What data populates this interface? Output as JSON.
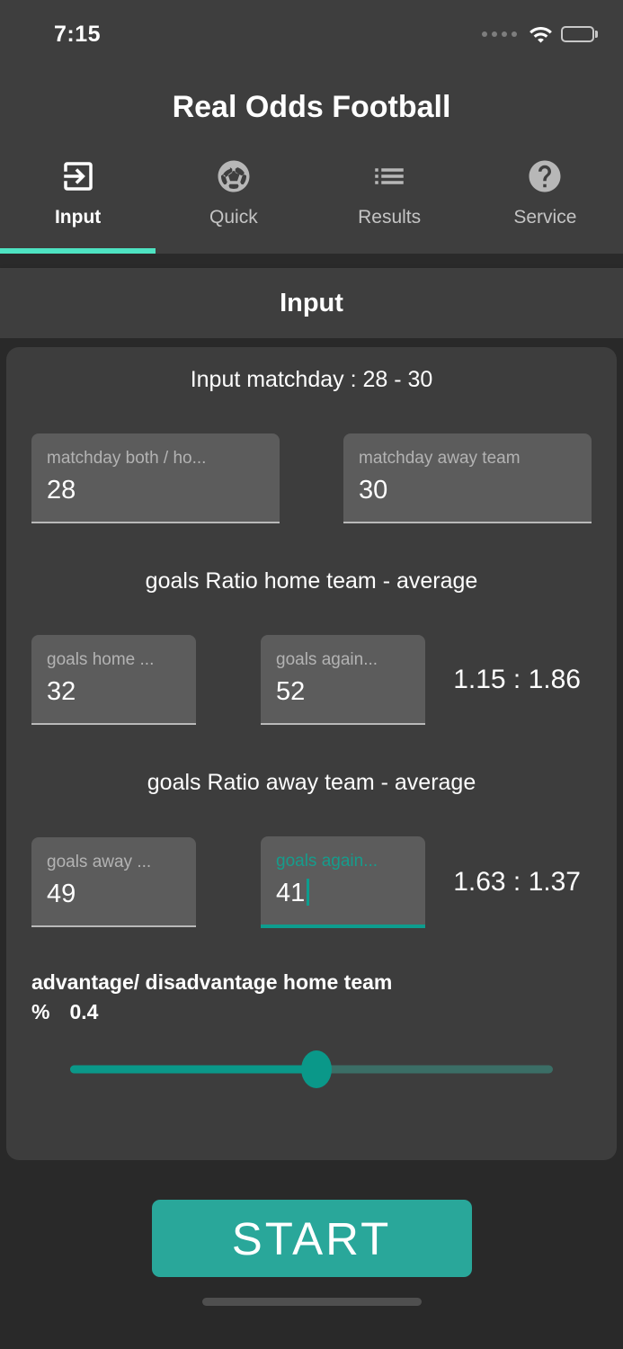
{
  "status_bar": {
    "time": "7:15"
  },
  "app": {
    "title": "Real Odds Football"
  },
  "tabs": [
    {
      "label": "Input",
      "icon": "exit-to-app-icon",
      "active": true
    },
    {
      "label": "Quick",
      "icon": "soccer-ball-icon",
      "active": false
    },
    {
      "label": "Results",
      "icon": "list-icon",
      "active": false
    },
    {
      "label": "Service",
      "icon": "help-icon",
      "active": false
    }
  ],
  "section_header": {
    "title": "Input"
  },
  "form": {
    "matchday": {
      "heading": "Input matchday : 28 - 30",
      "home": {
        "label": "matchday  both / ho...",
        "value": "28"
      },
      "away": {
        "label": "matchday away team",
        "value": "30"
      }
    },
    "home_ratio": {
      "heading": "goals Ratio home team -  average",
      "goals_for": {
        "label": "goals home ...",
        "value": "32"
      },
      "goals_against": {
        "label": "goals again...",
        "value": "52"
      },
      "ratio": "1.15 : 1.86"
    },
    "away_ratio": {
      "heading": "goals Ratio away team -  average",
      "goals_for": {
        "label": "goals away ...",
        "value": "49"
      },
      "goals_against": {
        "label": "goals again...",
        "value": "41",
        "focused": true
      },
      "ratio": "1.63 : 1.37"
    },
    "advantage": {
      "label": "advantage/ disadvantage  home team",
      "unit": "%",
      "value": "0.4",
      "slider_percent": 51
    }
  },
  "start_button": {
    "label": "START"
  },
  "colors": {
    "accent_teal": "#29a79a",
    "tab_indicator_mint": "#4ee3c2",
    "focus_teal": "#0d9d8e",
    "slider_active": "#0a9889",
    "slider_inactive": "#3b6e66",
    "card_bg": "#3d3d3d",
    "field_bg": "#5c5c5c",
    "page_bg": "#292929",
    "header_bg": "#3e3e3e"
  }
}
